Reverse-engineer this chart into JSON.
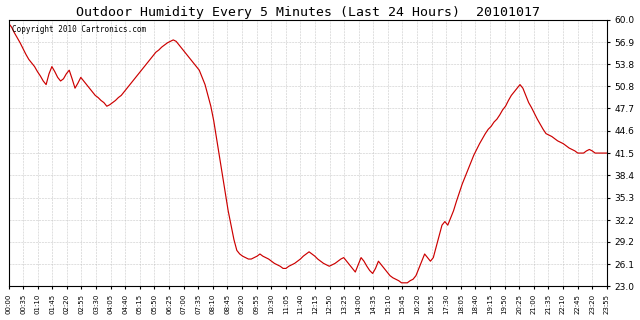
{
  "title": "Outdoor Humidity Every 5 Minutes (Last 24 Hours)  20101017",
  "copyright": "Copyright 2010 Cartronics.com",
  "line_color": "#cc0000",
  "bg_color": "#ffffff",
  "grid_color": "#bbbbbb",
  "yticks": [
    23.0,
    26.1,
    29.2,
    32.2,
    35.3,
    38.4,
    41.5,
    44.6,
    47.7,
    50.8,
    53.8,
    56.9,
    60.0
  ],
  "ylim": [
    23.0,
    60.0
  ],
  "xtick_labels": [
    "00:00",
    "00:35",
    "01:10",
    "01:45",
    "02:20",
    "02:55",
    "03:30",
    "04:05",
    "04:40",
    "05:15",
    "05:50",
    "06:25",
    "07:00",
    "07:35",
    "08:10",
    "08:45",
    "09:20",
    "09:55",
    "10:30",
    "11:05",
    "11:40",
    "12:15",
    "12:50",
    "13:25",
    "14:00",
    "14:35",
    "15:10",
    "15:45",
    "16:20",
    "16:55",
    "17:30",
    "18:05",
    "18:40",
    "19:15",
    "19:50",
    "20:25",
    "21:00",
    "21:35",
    "22:10",
    "22:45",
    "23:20",
    "23:55"
  ],
  "humidity": [
    59.5,
    59.0,
    58.2,
    57.5,
    56.8,
    56.0,
    55.2,
    54.5,
    54.0,
    53.5,
    52.8,
    52.2,
    51.5,
    51.0,
    52.5,
    53.5,
    52.8,
    52.0,
    51.5,
    51.8,
    52.5,
    53.0,
    51.8,
    50.5,
    51.2,
    52.0,
    51.5,
    51.0,
    50.5,
    50.0,
    49.5,
    49.2,
    48.8,
    48.5,
    48.0,
    48.2,
    48.5,
    48.8,
    49.2,
    49.5,
    50.0,
    50.5,
    51.0,
    51.5,
    52.0,
    52.5,
    53.0,
    53.5,
    54.0,
    54.5,
    55.0,
    55.5,
    55.8,
    56.2,
    56.5,
    56.8,
    57.0,
    57.2,
    57.0,
    56.5,
    56.0,
    55.5,
    55.0,
    54.5,
    54.0,
    53.5,
    53.0,
    52.0,
    51.0,
    49.5,
    48.0,
    46.0,
    43.5,
    41.0,
    38.5,
    36.0,
    33.5,
    31.5,
    29.5,
    28.0,
    27.5,
    27.2,
    27.0,
    26.8,
    26.8,
    27.0,
    27.2,
    27.5,
    27.2,
    27.0,
    26.8,
    26.5,
    26.2,
    26.0,
    25.8,
    25.5,
    25.5,
    25.8,
    26.0,
    26.2,
    26.5,
    26.8,
    27.2,
    27.5,
    27.8,
    27.5,
    27.2,
    26.8,
    26.5,
    26.2,
    26.0,
    25.8,
    26.0,
    26.2,
    26.5,
    26.8,
    27.0,
    26.5,
    26.0,
    25.5,
    25.0,
    26.0,
    27.0,
    26.5,
    25.8,
    25.2,
    24.8,
    25.5,
    26.5,
    26.0,
    25.5,
    25.0,
    24.5,
    24.2,
    24.0,
    23.8,
    23.5,
    23.5,
    23.5,
    23.8,
    24.0,
    24.5,
    25.5,
    26.5,
    27.5,
    27.0,
    26.5,
    27.0,
    28.5,
    30.0,
    31.5,
    32.0,
    31.5,
    32.5,
    33.5,
    34.8,
    36.0,
    37.2,
    38.2,
    39.2,
    40.2,
    41.2,
    42.0,
    42.8,
    43.5,
    44.2,
    44.8,
    45.2,
    45.8,
    46.2,
    46.8,
    47.5,
    48.0,
    48.8,
    49.5,
    50.0,
    50.5,
    51.0,
    50.5,
    49.5,
    48.5,
    47.8,
    47.0,
    46.2,
    45.5,
    44.8,
    44.2,
    44.0,
    43.8,
    43.5,
    43.2,
    43.0,
    42.8,
    42.5,
    42.2,
    42.0,
    41.8,
    41.5,
    41.5,
    41.5,
    41.8,
    42.0,
    41.8,
    41.5,
    41.5,
    41.5,
    41.5,
    41.5
  ]
}
